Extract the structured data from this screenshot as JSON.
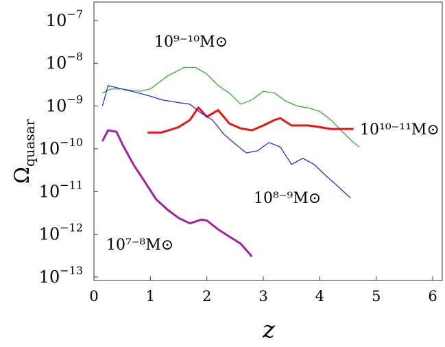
{
  "chart_data": {
    "type": "line",
    "x_label": "z",
    "y_label": "Ωquasar",
    "xlim": [
      0,
      6.17
    ],
    "xticks": [
      0,
      1,
      2,
      3,
      4,
      5,
      6
    ],
    "ylim": [
      8.3e-14,
      2.7e-07
    ],
    "log_y": true,
    "yticks": [
      {
        "value": 1e-07,
        "label": "10−7"
      },
      {
        "value": 1e-08,
        "label": "10−8"
      },
      {
        "value": 1e-09,
        "label": "10−9"
      },
      {
        "value": 1e-10,
        "label": "10−10"
      },
      {
        "value": 1e-11,
        "label": "10−11"
      },
      {
        "value": 1e-12,
        "label": "10−12"
      },
      {
        "value": 1e-13,
        "label": "10−13"
      }
    ],
    "series": [
      {
        "name": "10⁹⁻¹⁰M⊙",
        "color": "#22aa22",
        "line_width": 1.2,
        "x": [
          0.15,
          0.3,
          0.5,
          0.8,
          1.0,
          1.3,
          1.6,
          1.8,
          2.0,
          2.2,
          2.4,
          2.6,
          2.8,
          3.0,
          3.2,
          3.4,
          3.6,
          3.8,
          4.0,
          4.2,
          4.4,
          4.6,
          4.7
        ],
        "values": [
          2e-09,
          2.5e-09,
          2.5e-09,
          2.2e-09,
          2.5e-09,
          5e-09,
          8e-09,
          8e-09,
          5.6e-09,
          3e-09,
          2e-09,
          1.1e-09,
          1.4e-09,
          2.2e-09,
          2e-09,
          1.3e-09,
          1e-09,
          9e-10,
          7.5e-10,
          4.7e-10,
          2.5e-10,
          1.4e-10,
          1.1e-10
        ]
      },
      {
        "name": "10¹⁰⁻¹¹M⊙",
        "color": "#ee1111",
        "line_width": 3,
        "x": [
          0.95,
          1.2,
          1.5,
          1.7,
          1.85,
          2.0,
          2.2,
          2.4,
          2.6,
          2.8,
          3.0,
          3.2,
          3.3,
          3.5,
          3.8,
          4.0,
          4.2,
          4.4,
          4.6
        ],
        "values": [
          2.4e-10,
          2.4e-10,
          3.2e-10,
          4.7e-10,
          9.2e-10,
          5.6e-10,
          8e-10,
          3.9e-10,
          3e-10,
          2.7e-10,
          3.5e-10,
          4.7e-10,
          5.2e-10,
          3.5e-10,
          3.5e-10,
          3.2e-10,
          2.9e-10,
          2.9e-10,
          2.9e-10
        ]
      },
      {
        "name": "10⁸⁻⁹M⊙",
        "color": "#1a1aee",
        "line_width": 1.2,
        "x": [
          0.15,
          0.25,
          0.5,
          0.8,
          1.0,
          1.2,
          1.5,
          1.7,
          1.9,
          2.1,
          2.3,
          2.5,
          2.7,
          2.9,
          3.1,
          3.3,
          3.5,
          3.7,
          3.9,
          4.1,
          4.3,
          4.55
        ],
        "values": [
          1e-09,
          3e-09,
          2.5e-09,
          2e-09,
          1.7e-09,
          1.4e-09,
          1.2e-09,
          1.1e-09,
          6.8e-10,
          4.7e-10,
          2.2e-10,
          1.3e-10,
          8e-11,
          9e-11,
          1.4e-10,
          1.1e-10,
          4.3e-11,
          6e-11,
          4.3e-11,
          2.4e-11,
          1.4e-11,
          7e-12
        ]
      },
      {
        "name": "10⁷⁻⁸M⊙",
        "color": "#a020a0",
        "line_width": 3,
        "x": [
          0.15,
          0.25,
          0.4,
          0.5,
          0.7,
          0.9,
          1.1,
          1.3,
          1.5,
          1.7,
          1.9,
          2.0,
          2.2,
          2.4,
          2.6,
          2.8
        ],
        "values": [
          1.5e-10,
          2.7e-10,
          2.5e-10,
          1.3e-10,
          4.3e-11,
          1.7e-11,
          6.6e-12,
          3.8e-12,
          2.4e-12,
          1.8e-12,
          2.2e-12,
          2.1e-12,
          1.3e-12,
          8.8e-13,
          6e-13,
          3e-13
        ]
      }
    ]
  }
}
